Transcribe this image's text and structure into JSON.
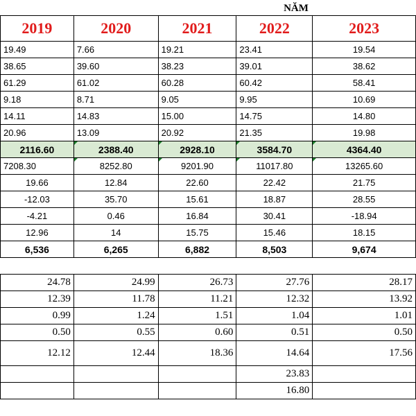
{
  "header": {
    "title": "NĂM"
  },
  "years": [
    "2019",
    "2020",
    "2021",
    "2022",
    "2023"
  ],
  "group1": [
    [
      "19.49",
      "7.66",
      "19.21",
      "23.41",
      "19.54"
    ],
    [
      "38.65",
      "39.60",
      "38.23",
      "39.01",
      "38.62"
    ],
    [
      "61.29",
      "61.02",
      "60.28",
      "60.42",
      "58.41"
    ],
    [
      "9.18",
      "8.71",
      "9.05",
      "9.95",
      "10.69"
    ],
    [
      "14.11",
      "14.83",
      "15.00",
      "14.75",
      "14.80"
    ],
    [
      "20.96",
      "13.09",
      "20.92",
      "21.35",
      "19.98"
    ]
  ],
  "highlight": [
    "2116.60",
    "2388.40",
    "2928.10",
    "3584.70",
    "4364.40"
  ],
  "group2": [
    [
      "7208.30",
      "8252.80",
      "9201.90",
      "11017.80",
      "13265.60"
    ],
    [
      "19.66",
      "12.84",
      "22.60",
      "22.42",
      "21.75"
    ],
    [
      "-12.03",
      "35.70",
      "15.61",
      "18.87",
      "28.55"
    ],
    [
      "-4.21",
      "0.46",
      "16.84",
      "30.41",
      "-18.94"
    ],
    [
      "12.96",
      "14",
      "15.75",
      "15.46",
      "18.15"
    ]
  ],
  "bold_row": [
    "6,536",
    "6,265",
    "6,882",
    "8,503",
    "9,674"
  ],
  "group3": [
    [
      "24.78",
      "24.99",
      "26.73",
      "27.76",
      "28.17"
    ],
    [
      "12.39",
      "11.78",
      "11.21",
      "12.32",
      "13.92"
    ],
    [
      "0.99",
      "1.24",
      "1.51",
      "1.04",
      "1.01"
    ],
    [
      "0.50",
      "0.55",
      "0.60",
      "0.51",
      "0.50"
    ]
  ],
  "group3_tall": [
    "12.12",
    "12.44",
    "18.36",
    "14.64",
    "17.56"
  ],
  "extra": [
    "23.83",
    "16.80"
  ]
}
